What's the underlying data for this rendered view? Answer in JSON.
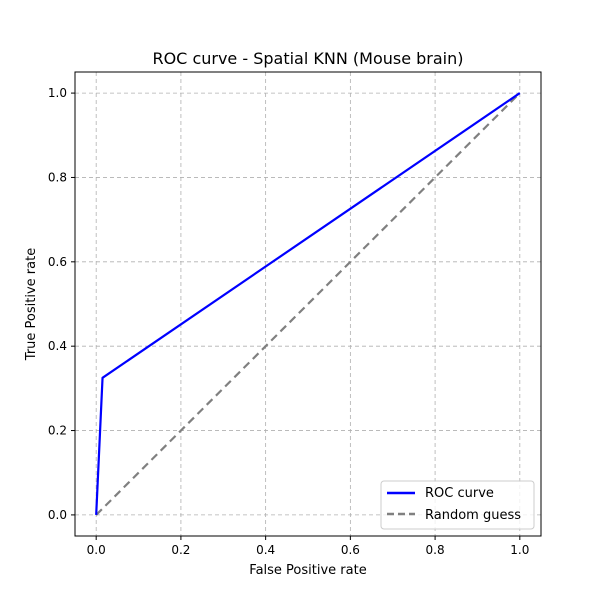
{
  "chart_data": {
    "type": "line",
    "title": "ROC curve - Spatial KNN (Mouse brain)",
    "xlabel": "False Positive rate",
    "ylabel": "True Positive rate",
    "xlim": [
      -0.05,
      1.05
    ],
    "ylim": [
      -0.05,
      1.05
    ],
    "xticks": [
      0.0,
      0.2,
      0.4,
      0.6,
      0.8,
      1.0
    ],
    "yticks": [
      0.0,
      0.2,
      0.4,
      0.6,
      0.8,
      1.0
    ],
    "xtick_labels": [
      "0.0",
      "0.2",
      "0.4",
      "0.6",
      "0.8",
      "1.0"
    ],
    "ytick_labels": [
      "0.0",
      "0.2",
      "0.4",
      "0.6",
      "0.8",
      "1.0"
    ],
    "grid": true,
    "legend_position": "lower-right",
    "series": [
      {
        "name": "ROC curve",
        "color": "#0000ff",
        "style": "solid",
        "x": [
          0.0,
          0.015,
          1.0
        ],
        "y": [
          0.0,
          0.325,
          1.0
        ]
      },
      {
        "name": "Random guess",
        "color": "#808080",
        "style": "dashed",
        "x": [
          0.0,
          1.0
        ],
        "y": [
          0.0,
          1.0
        ]
      }
    ]
  }
}
